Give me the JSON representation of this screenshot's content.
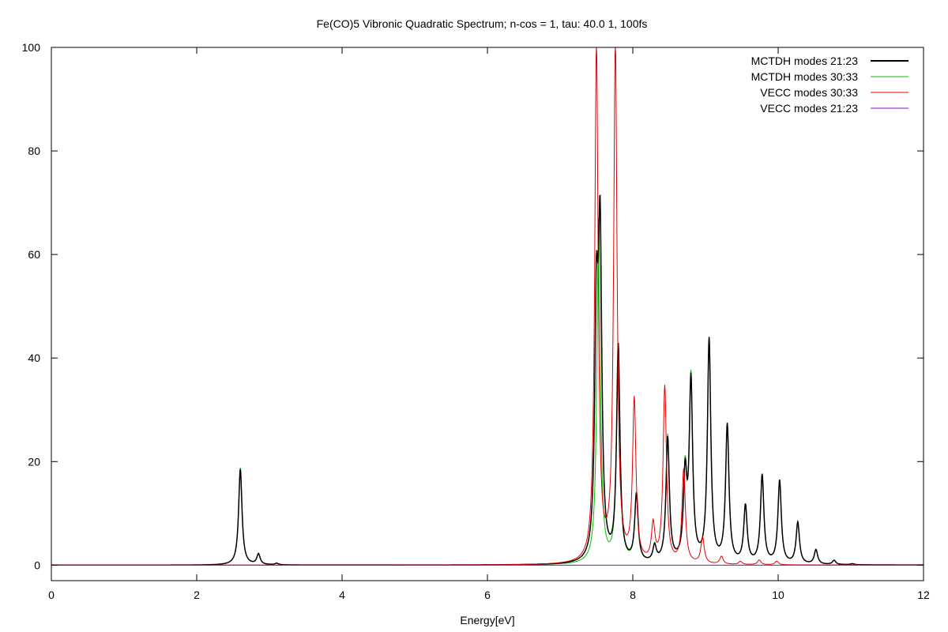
{
  "chart_data": {
    "type": "line",
    "title": "Fe(CO)5 Vibronic Quadratic Spectrum; n-cos = 1, tau: 40.0 1, 100fs",
    "xlabel": "Energy[eV]",
    "ylabel": "",
    "xlim": [
      0,
      12
    ],
    "ylim": [
      -3,
      100
    ],
    "xticks": [
      "0",
      "2",
      "4",
      "6",
      "8",
      "10",
      "12"
    ],
    "yticks": [
      "0",
      "20",
      "40",
      "60",
      "80",
      "100"
    ],
    "grid": false,
    "legend_position": "top-right",
    "series": [
      {
        "name": "MCTDH modes 21:23",
        "color": "#000000",
        "peaks": [
          [
            2.6,
            18.5
          ],
          [
            2.85,
            2.0
          ],
          [
            3.1,
            0.3
          ],
          [
            7.5,
            45
          ],
          [
            7.55,
            60
          ],
          [
            7.8,
            41.5
          ],
          [
            8.05,
            13
          ],
          [
            8.3,
            3
          ],
          [
            8.48,
            24
          ],
          [
            8.72,
            16
          ],
          [
            8.8,
            34.5
          ],
          [
            9.05,
            43
          ],
          [
            9.3,
            26.5
          ],
          [
            9.55,
            11
          ],
          [
            9.78,
            17
          ],
          [
            10.02,
            16
          ],
          [
            10.27,
            8
          ],
          [
            10.52,
            2.8
          ],
          [
            10.77,
            0.8
          ],
          [
            11.02,
            0.2
          ]
        ]
      },
      {
        "name": "MCTDH modes 30:33",
        "color": "#00c000",
        "peaks": [
          [
            2.6,
            18.8
          ],
          [
            2.85,
            2.1
          ],
          [
            3.1,
            0.3
          ],
          [
            7.53,
            66.5
          ],
          [
            7.8,
            41
          ],
          [
            8.05,
            13
          ],
          [
            8.3,
            3.2
          ],
          [
            8.48,
            24.5
          ],
          [
            8.72,
            16.5
          ],
          [
            8.8,
            35
          ],
          [
            9.05,
            43
          ],
          [
            9.3,
            26.5
          ],
          [
            9.55,
            11
          ],
          [
            9.78,
            17
          ],
          [
            10.02,
            16
          ],
          [
            10.27,
            8
          ],
          [
            10.52,
            2.8
          ],
          [
            10.77,
            0.8
          ],
          [
            11.02,
            0.2
          ]
        ]
      },
      {
        "name": "VECC modes 30:33",
        "color": "#e00000",
        "peaks": [
          [
            7.5,
            100
          ],
          [
            7.76,
            100
          ],
          [
            8.02,
            31
          ],
          [
            8.28,
            7
          ],
          [
            8.44,
            34
          ],
          [
            8.7,
            18
          ],
          [
            8.96,
            5
          ],
          [
            9.22,
            1.5
          ],
          [
            9.48,
            0.6
          ],
          [
            9.74,
            0.9
          ],
          [
            9.98,
            0.7
          ]
        ]
      },
      {
        "name": "VECC modes 21:23",
        "color": "#9400d3",
        "peaks": []
      }
    ]
  }
}
